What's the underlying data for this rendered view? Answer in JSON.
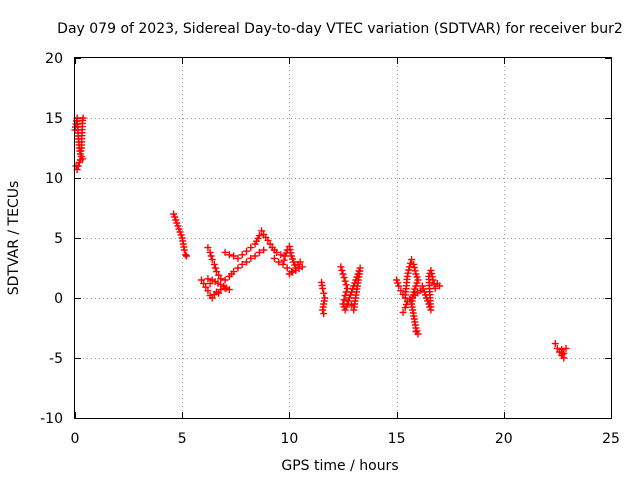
{
  "chart_data": {
    "type": "scatter",
    "title": "Day 079 of 2023, Sidereal Day-to-day VTEC variation (SDTVAR) for receiver bur2",
    "xlabel": "GPS time / hours",
    "ylabel": "SDTVAR / TECUs",
    "xlim": [
      0,
      25
    ],
    "ylim": [
      -10,
      20
    ],
    "x_ticks": [
      0,
      5,
      10,
      15,
      20,
      25
    ],
    "y_ticks": [
      -10,
      -5,
      0,
      5,
      10,
      15,
      20
    ],
    "x_tick_labels": [
      "0",
      "5",
      "10",
      "15",
      "20",
      "25"
    ],
    "y_tick_labels": [
      "-10",
      "-5",
      "0",
      "5",
      "10",
      "15",
      "20"
    ],
    "grid": true,
    "marker": "plus",
    "marker_color": "#ff0000",
    "segments": [
      {
        "points": [
          [
            0.0,
            14.0
          ],
          [
            0.05,
            14.5
          ],
          [
            0.1,
            15.0
          ],
          [
            0.15,
            13.5
          ],
          [
            0.2,
            12.5
          ],
          [
            0.25,
            12.0
          ],
          [
            0.3,
            12.5
          ],
          [
            0.35,
            14.8
          ],
          [
            0.38,
            15.0
          ]
        ]
      },
      {
        "points": [
          [
            0.05,
            11.0
          ],
          [
            0.1,
            10.7
          ],
          [
            0.15,
            11.0
          ],
          [
            0.2,
            11.3
          ],
          [
            0.25,
            11.5
          ],
          [
            0.3,
            11.8
          ],
          [
            0.35,
            11.6
          ]
        ]
      },
      {
        "points": [
          [
            4.6,
            7.0
          ],
          [
            4.7,
            6.5
          ],
          [
            4.8,
            6.0
          ],
          [
            4.9,
            5.5
          ],
          [
            5.0,
            5.0
          ],
          [
            5.05,
            4.5
          ],
          [
            5.1,
            4.0
          ],
          [
            5.15,
            3.6
          ],
          [
            5.2,
            3.5
          ]
        ]
      },
      {
        "points": [
          [
            5.9,
            1.5
          ],
          [
            6.0,
            1.2
          ],
          [
            6.1,
            0.9
          ],
          [
            6.2,
            0.6
          ],
          [
            6.3,
            0.2
          ],
          [
            6.4,
            0.0
          ],
          [
            6.5,
            0.3
          ],
          [
            6.6,
            0.5
          ],
          [
            6.7,
            0.4
          ],
          [
            6.8,
            0.7
          ],
          [
            7.0,
            0.8
          ],
          [
            7.2,
            0.7
          ],
          [
            6.4,
            1.5
          ],
          [
            6.3,
            1.2
          ],
          [
            6.2,
            1.6
          ]
        ]
      },
      {
        "points": [
          [
            6.2,
            4.2
          ],
          [
            6.3,
            3.8
          ],
          [
            6.4,
            3.2
          ],
          [
            6.5,
            2.8
          ],
          [
            6.6,
            2.2
          ],
          [
            6.7,
            1.9
          ],
          [
            6.8,
            1.6
          ],
          [
            7.0,
            1.5
          ],
          [
            7.2,
            1.8
          ],
          [
            7.4,
            2.2
          ],
          [
            7.6,
            2.5
          ],
          [
            7.8,
            2.8
          ],
          [
            8.0,
            3.0
          ],
          [
            8.2,
            3.3
          ],
          [
            8.4,
            3.5
          ],
          [
            8.6,
            3.8
          ],
          [
            8.8,
            4.0
          ]
        ]
      },
      {
        "points": [
          [
            7.0,
            3.8
          ],
          [
            7.2,
            3.6
          ],
          [
            7.4,
            3.5
          ],
          [
            7.6,
            3.3
          ],
          [
            7.8,
            3.6
          ],
          [
            8.0,
            3.9
          ],
          [
            8.2,
            4.2
          ],
          [
            8.4,
            4.5
          ],
          [
            8.6,
            5.2
          ],
          [
            8.7,
            5.6
          ],
          [
            8.8,
            5.3
          ],
          [
            9.0,
            4.8
          ],
          [
            9.2,
            4.2
          ],
          [
            9.4,
            3.8
          ],
          [
            9.6,
            3.6
          ]
        ]
      },
      {
        "points": [
          [
            9.3,
            3.3
          ],
          [
            9.5,
            3.0
          ],
          [
            9.7,
            2.8
          ],
          [
            9.8,
            3.5
          ],
          [
            9.9,
            4.0
          ],
          [
            10.0,
            4.3
          ],
          [
            10.1,
            3.5
          ],
          [
            10.2,
            3.0
          ],
          [
            10.3,
            2.5
          ],
          [
            10.4,
            2.8
          ],
          [
            10.5,
            3.0
          ],
          [
            10.6,
            2.6
          ],
          [
            10.0,
            2.0
          ],
          [
            10.1,
            2.2
          ],
          [
            9.9,
            2.5
          ]
        ]
      },
      {
        "points": [
          [
            11.5,
            1.3
          ],
          [
            11.55,
            0.8
          ],
          [
            11.6,
            0.4
          ],
          [
            11.65,
            0.0
          ],
          [
            11.6,
            -0.5
          ],
          [
            11.55,
            -1.0
          ],
          [
            11.6,
            -1.3
          ]
        ]
      },
      {
        "points": [
          [
            12.4,
            2.6
          ],
          [
            12.5,
            2.0
          ],
          [
            12.6,
            1.4
          ],
          [
            12.7,
            0.8
          ],
          [
            12.6,
            0.2
          ],
          [
            12.5,
            -0.5
          ],
          [
            12.6,
            -1.0
          ],
          [
            12.7,
            -0.5
          ],
          [
            12.8,
            0.0
          ],
          [
            12.9,
            0.5
          ],
          [
            13.0,
            1.0
          ],
          [
            13.1,
            1.5
          ],
          [
            13.2,
            2.0
          ],
          [
            13.3,
            2.5
          ],
          [
            13.0,
            -1.0
          ],
          [
            12.9,
            -0.6
          ]
        ]
      },
      {
        "points": [
          [
            15.0,
            1.5
          ],
          [
            15.1,
            1.0
          ],
          [
            15.2,
            0.6
          ],
          [
            15.3,
            0.3
          ],
          [
            15.4,
            0.0
          ],
          [
            15.5,
            1.8
          ],
          [
            15.6,
            2.6
          ],
          [
            15.7,
            3.2
          ],
          [
            15.8,
            2.8
          ],
          [
            15.9,
            2.0
          ],
          [
            16.0,
            1.5
          ],
          [
            15.8,
            0.5
          ],
          [
            15.7,
            -0.5
          ],
          [
            15.8,
            -1.5
          ],
          [
            15.9,
            -2.5
          ],
          [
            16.0,
            -3.0
          ],
          [
            15.9,
            -2.8
          ]
        ]
      },
      {
        "points": [
          [
            15.3,
            -1.2
          ],
          [
            15.4,
            -0.8
          ],
          [
            15.5,
            -0.3
          ],
          [
            16.1,
            0.6
          ],
          [
            16.2,
            1.0
          ],
          [
            16.3,
            0.5
          ],
          [
            16.4,
            0.0
          ],
          [
            16.5,
            -0.5
          ],
          [
            16.6,
            -1.0
          ],
          [
            16.5,
            1.8
          ],
          [
            16.6,
            2.3
          ],
          [
            16.7,
            1.5
          ],
          [
            16.8,
            0.8
          ],
          [
            16.9,
            1.2
          ],
          [
            17.0,
            1.0
          ]
        ]
      },
      {
        "points": [
          [
            22.4,
            -3.8
          ],
          [
            22.5,
            -4.2
          ],
          [
            22.6,
            -4.5
          ],
          [
            22.7,
            -4.8
          ],
          [
            22.8,
            -5.0
          ],
          [
            22.7,
            -4.3
          ],
          [
            22.8,
            -4.6
          ],
          [
            22.9,
            -4.2
          ]
        ]
      }
    ]
  }
}
